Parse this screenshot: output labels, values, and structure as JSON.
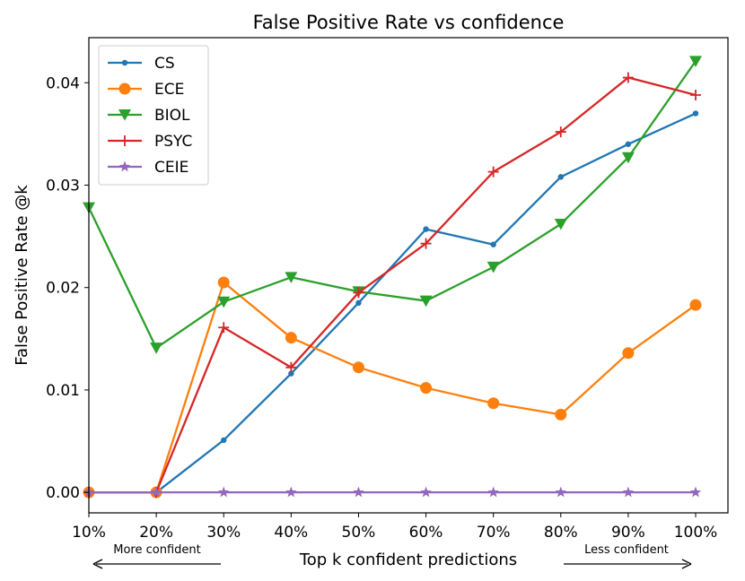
{
  "chart_data": {
    "type": "line",
    "title": "False Positive Rate vs confidence",
    "xlabel": "Top k confident predictions",
    "ylabel": "False Positive Rate @k",
    "categories": [
      "10%",
      "20%",
      "30%",
      "40%",
      "50%",
      "60%",
      "70%",
      "80%",
      "90%",
      "100%"
    ],
    "yticks": [
      0.0,
      0.01,
      0.02,
      0.03,
      0.04
    ],
    "ytick_labels": [
      "0.00",
      "0.01",
      "0.02",
      "0.03",
      "0.04"
    ],
    "ylim": [
      -0.002,
      0.0444
    ],
    "grid": false,
    "legend_position": "top-left",
    "series": [
      {
        "name": "CS",
        "color": "#1f77b4",
        "marker": "point",
        "values": [
          0.0,
          0.0,
          0.0051,
          0.0116,
          0.0185,
          0.0257,
          0.0242,
          0.0308,
          0.034,
          0.037
        ]
      },
      {
        "name": "ECE",
        "color": "#ff7f0e",
        "marker": "circle",
        "values": [
          0.0,
          0.0,
          0.0205,
          0.0151,
          0.0122,
          0.0102,
          0.0087,
          0.0076,
          0.0136,
          0.0183
        ]
      },
      {
        "name": "BIOL",
        "color": "#2ca02c",
        "marker": "triangle-down",
        "values": [
          0.0278,
          0.0141,
          0.0186,
          0.021,
          0.0196,
          0.0187,
          0.022,
          0.0262,
          0.0327,
          0.0421
        ]
      },
      {
        "name": "PSYC",
        "color": "#d62728",
        "marker": "plus",
        "values": [
          0.0,
          0.0,
          0.0161,
          0.0122,
          0.0195,
          0.0243,
          0.0313,
          0.0352,
          0.0405,
          0.0388
        ]
      },
      {
        "name": "CEIE",
        "color": "#9467bd",
        "marker": "star",
        "values": [
          0.0,
          0.0,
          0.0,
          0.0,
          0.0,
          0.0,
          0.0,
          0.0,
          0.0,
          0.0
        ]
      }
    ],
    "annotations": {
      "left": "More confident",
      "right": "Less confident"
    }
  }
}
